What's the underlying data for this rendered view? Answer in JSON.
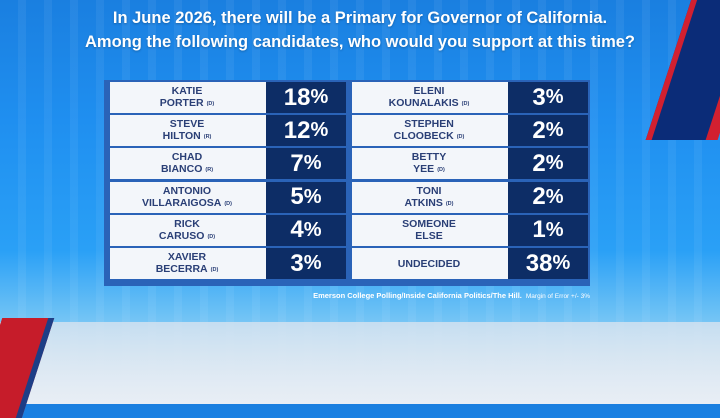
{
  "headline": {
    "line1": "In June 2026, there will be a Primary for Governor of California.",
    "line2": "Among the following candidates, who would you support at this time?"
  },
  "footer": {
    "source": "Emerson College Polling/Inside California Politics/The Hill.",
    "moe": "Margin of Error +/- 3%"
  },
  "colors": {
    "background": "#1f8ff0",
    "panel": "#2a63b8",
    "value_box": "#0d2d66",
    "name_text": "#2a3f76",
    "accent_red": "#c61c2a"
  },
  "chart_data": {
    "type": "table",
    "unit": "%",
    "columns": [
      [
        {
          "line1": "KATIE",
          "line2": "PORTER",
          "party": "(D)",
          "value": 18
        },
        {
          "line1": "STEVE",
          "line2": "HILTON",
          "party": "(R)",
          "value": 12
        },
        {
          "line1": "CHAD",
          "line2": "BIANCO",
          "party": "(R)",
          "value": 7
        },
        {
          "line1": "ANTONIO",
          "line2": "VILLARAIGOSA",
          "party": "(D)",
          "value": 5
        },
        {
          "line1": "RICK",
          "line2": "CARUSO",
          "party": "(D)",
          "value": 4
        },
        {
          "line1": "XAVIER",
          "line2": "BECERRA",
          "party": "(D)",
          "value": 3
        }
      ],
      [
        {
          "line1": "ELENI",
          "line2": "KOUNALAKIS",
          "party": "(D)",
          "value": 3
        },
        {
          "line1": "STEPHEN",
          "line2": "CLOOBECK",
          "party": "(D)",
          "value": 2
        },
        {
          "line1": "BETTY",
          "line2": "YEE",
          "party": "(D)",
          "value": 2
        },
        {
          "line1": "TONI",
          "line2": "ATKINS",
          "party": "(D)",
          "value": 2
        },
        {
          "line1": "SOMEONE",
          "line2": "ELSE",
          "party": "",
          "value": 1
        },
        {
          "line1": "",
          "line2": "UNDECIDED",
          "party": "",
          "value": 38
        }
      ]
    ]
  }
}
